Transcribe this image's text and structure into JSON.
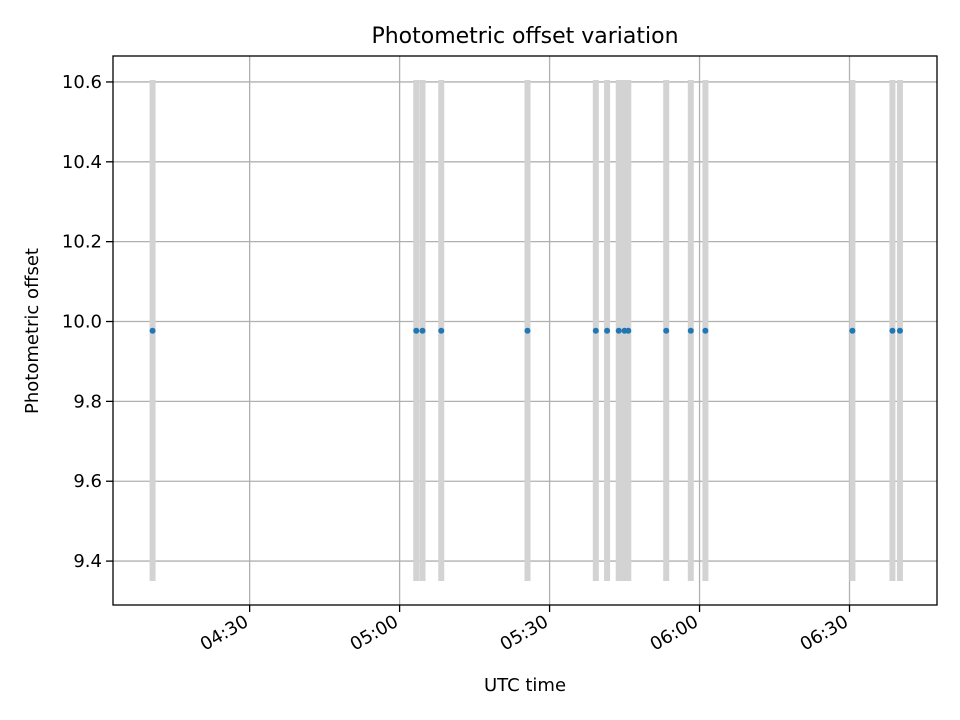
{
  "chart_data": {
    "type": "scatter",
    "title": "Photometric offset variation",
    "xlabel": "UTC time",
    "ylabel": "Photometric offset",
    "x_ticks": [
      "04:30",
      "05:00",
      "05:30",
      "06:00",
      "06:30"
    ],
    "y_ticks": [
      "9.4",
      "9.6",
      "9.8",
      "10.0",
      "10.2",
      "10.4",
      "10.6"
    ],
    "xlim": [
      "04:02:40",
      "06:47:30"
    ],
    "ylim": [
      9.29,
      10.665
    ],
    "grid": true,
    "error_bar_range": [
      9.35,
      10.605
    ],
    "point_color": "#1f77b4",
    "error_bar_color": "#d3d3d3",
    "grid_color": "#b0b0b0",
    "points": [
      {
        "x": "04:10:35",
        "y": 9.977
      },
      {
        "x": "05:03:20",
        "y": 9.977
      },
      {
        "x": "05:04:35",
        "y": 9.977
      },
      {
        "x": "05:08:20",
        "y": 9.977
      },
      {
        "x": "05:25:35",
        "y": 9.977
      },
      {
        "x": "05:39:15",
        "y": 9.977
      },
      {
        "x": "05:41:30",
        "y": 9.977
      },
      {
        "x": "05:43:50",
        "y": 9.977
      },
      {
        "x": "05:45:00",
        "y": 9.977
      },
      {
        "x": "05:45:45",
        "y": 9.977
      },
      {
        "x": "05:53:20",
        "y": 9.977
      },
      {
        "x": "05:58:15",
        "y": 9.977
      },
      {
        "x": "06:01:10",
        "y": 9.977
      },
      {
        "x": "06:30:35",
        "y": 9.977
      },
      {
        "x": "06:38:35",
        "y": 9.977
      },
      {
        "x": "06:40:05",
        "y": 9.977
      }
    ]
  }
}
